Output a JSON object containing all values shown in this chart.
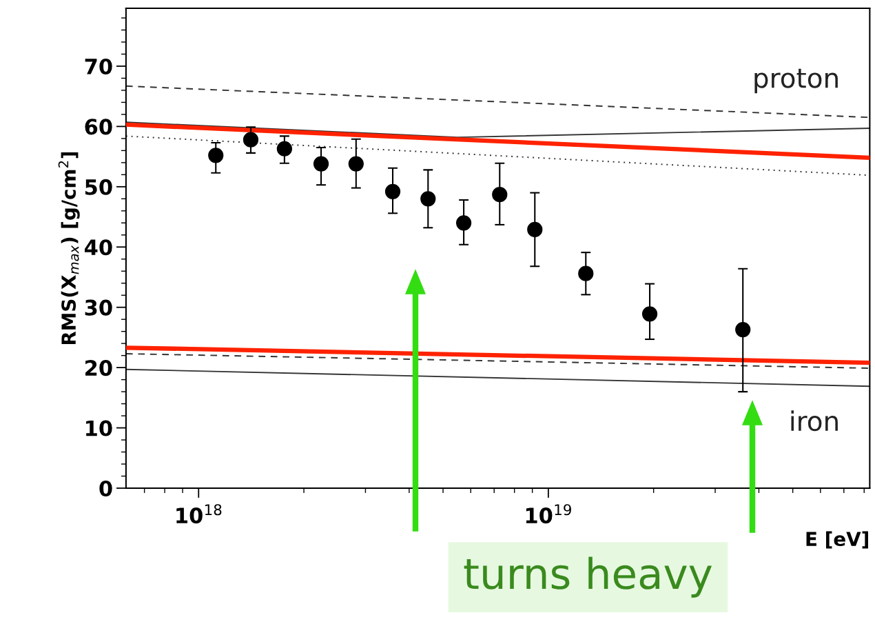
{
  "chart_data": {
    "type": "scatter",
    "xlabel": "E [eV]",
    "ylabel": "RMS(X$_{max}$) [g/cm$^{2}$]",
    "log": "x",
    "xlim": [
      6.2e+17,
      8.3e+19
    ],
    "ylim": [
      0,
      79.6
    ],
    "xticks": [
      {
        "value": 1e+18,
        "label": "10$^{18}$"
      },
      {
        "value": 1e+19,
        "label": "10$^{19}$"
      }
    ],
    "yticks": [
      0,
      10,
      20,
      30,
      40,
      50,
      60,
      70
    ],
    "grid": false,
    "legend": false,
    "series": [
      {
        "type": "line",
        "color": "#333333",
        "line_style": "dashed",
        "marker": "none",
        "x": [
          6.2e+17,
          8.3e+19
        ],
        "values": [
          66.7,
          61.5
        ]
      },
      {
        "type": "line",
        "color": "#333333",
        "line_style": "solid",
        "marker": "none",
        "x": [
          6.2e+17,
          5.5e+18,
          8.3e+19
        ],
        "values": [
          60.7,
          58.2,
          59.7
        ]
      },
      {
        "type": "line",
        "color": "#333333",
        "line_style": "dotted",
        "marker": "none",
        "x": [
          6.2e+17,
          8.3e+19
        ],
        "values": [
          58.4,
          51.9
        ]
      },
      {
        "type": "line",
        "color": "#333333",
        "line_style": "dashed",
        "marker": "none",
        "x": [
          6.2e+17,
          8.3e+19
        ],
        "values": [
          22.3,
          19.9
        ]
      },
      {
        "type": "line",
        "color": "#333333",
        "line_style": "solid",
        "marker": "none",
        "x": [
          6.2e+17,
          8.3e+19
        ],
        "values": [
          19.7,
          16.9
        ]
      },
      {
        "type": "line",
        "color": "#ff2200",
        "line_style": "solid",
        "marker": "none",
        "x": [
          6.2e+17,
          8.3e+19
        ],
        "values": [
          60.3,
          54.8
        ]
      },
      {
        "type": "line",
        "color": "#ff2200",
        "line_style": "solid",
        "marker": "none",
        "x": [
          6.2e+17,
          8.3e+19
        ],
        "values": [
          23.3,
          20.8
        ]
      },
      {
        "color": "#000000",
        "marker": "circle",
        "x": [
          1.12e+18,
          1.41e+18,
          1.76e+18,
          2.24e+18,
          2.82e+18,
          3.59e+18,
          4.53e+18,
          5.73e+18,
          7.26e+18,
          9.15e+18,
          1.28e+19,
          1.95e+19,
          3.6e+19
        ],
        "values": [
          55.2,
          57.8,
          56.3,
          53.8,
          53.8,
          49.2,
          48.0,
          44.0,
          48.7,
          42.9,
          35.6,
          28.9,
          26.3
        ],
        "errors": [
          [
            52.3,
            57.3
          ],
          [
            55.6,
            59.9
          ],
          [
            53.9,
            58.4
          ],
          [
            50.3,
            56.5
          ],
          [
            49.8,
            57.9
          ],
          [
            45.6,
            53.1
          ],
          [
            43.2,
            52.8
          ],
          [
            40.4,
            47.8
          ],
          [
            43.7,
            53.9
          ],
          [
            36.8,
            49.0
          ],
          [
            32.1,
            39.1
          ],
          [
            24.7,
            33.9
          ],
          [
            16.0,
            36.4
          ]
        ]
      }
    ],
    "annotations": [
      "proton",
      "iron",
      "turns heavy"
    ]
  }
}
